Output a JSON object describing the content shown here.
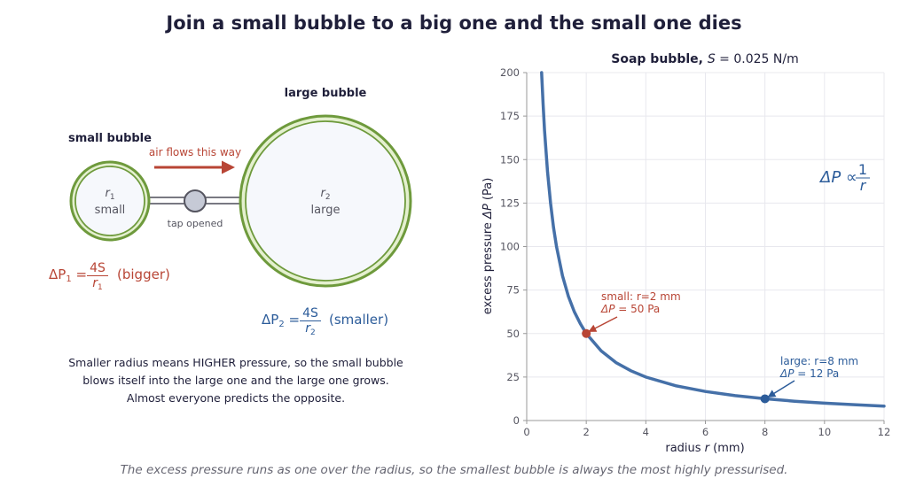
{
  "title": "Join a small bubble to a big one and the small one dies",
  "diagram": {
    "small_bubble": {
      "heading": "small bubble",
      "var": "r",
      "sub": "1",
      "label": "small",
      "formula": {
        "lhs": "ΔP",
        "lhs_sub": "1",
        "numerator": "4S",
        "den_var": "r",
        "den_sub": "1",
        "note": "(bigger)"
      }
    },
    "large_bubble": {
      "heading": "large bubble",
      "var": "r",
      "sub": "2",
      "label": "large",
      "formula": {
        "lhs": "ΔP",
        "lhs_sub": "2",
        "numerator": "4S",
        "den_var": "r",
        "den_sub": "2",
        "note": "(smaller)"
      }
    },
    "airflow_label": "air flows this way",
    "tap_label": "tap opened",
    "explanation": [
      "Smaller radius means HIGHER pressure, so the small bubble",
      "blows itself into the large one and the large one grows.",
      "Almost everyone predicts the opposite."
    ]
  },
  "chart_data": {
    "type": "line",
    "title_prefix": "Soap bubble, ",
    "title_var": "S",
    "title_value": " = 0.025 N/m",
    "xlabel_text": "radius",
    "xlabel_var": "r",
    "xlabel_unit": "(mm)",
    "ylabel_text": "excess pressure",
    "ylabel_var": "ΔP",
    "ylabel_unit": "(Pa)",
    "xlim": [
      0,
      12
    ],
    "ylim": [
      0,
      200
    ],
    "xticks": [
      0,
      2,
      4,
      6,
      8,
      10,
      12
    ],
    "yticks": [
      0,
      25,
      50,
      75,
      100,
      125,
      150,
      175,
      200
    ],
    "grid": true,
    "relation": "ΔP = 100 / r",
    "curve": {
      "x": [
        0.5,
        0.55,
        0.6,
        0.7,
        0.8,
        0.9,
        1.0,
        1.2,
        1.4,
        1.6,
        1.8,
        2.0,
        2.5,
        3.0,
        3.5,
        4.0,
        5.0,
        6.0,
        7.0,
        8.0,
        9.0,
        10.0,
        11.0,
        12.0
      ],
      "y": [
        200,
        181.8,
        166.7,
        142.9,
        125,
        111.1,
        100,
        83.3,
        71.4,
        62.5,
        55.6,
        50,
        40,
        33.3,
        28.6,
        25,
        20,
        16.7,
        14.3,
        12.5,
        11.1,
        10,
        9.1,
        8.3
      ]
    },
    "points": [
      {
        "x": 2,
        "y": 50,
        "line1": "small: r=2 mm",
        "var": "ΔP",
        "line2_value": " = 50 Pa"
      },
      {
        "x": 8,
        "y": 12.5,
        "line1": "large: r=8 mm",
        "var": "ΔP",
        "line2_value": " = 12 Pa"
      }
    ],
    "annotation": {
      "lhs": "ΔP",
      "symbol": "∝",
      "numerator": "1",
      "denominator": "r"
    },
    "colors": {
      "curve": "#4570a8",
      "small": "#b84535",
      "large": "#2c5c9a",
      "grid": "#e8e8ee",
      "bubble_stroke": "#6e9a3c",
      "bubble_fill": "#f6f8fc",
      "bubble_ring": "#e4f0cf"
    }
  },
  "footer": "The excess pressure runs as one over the radius, so the smallest bubble is always the most highly pressurised."
}
